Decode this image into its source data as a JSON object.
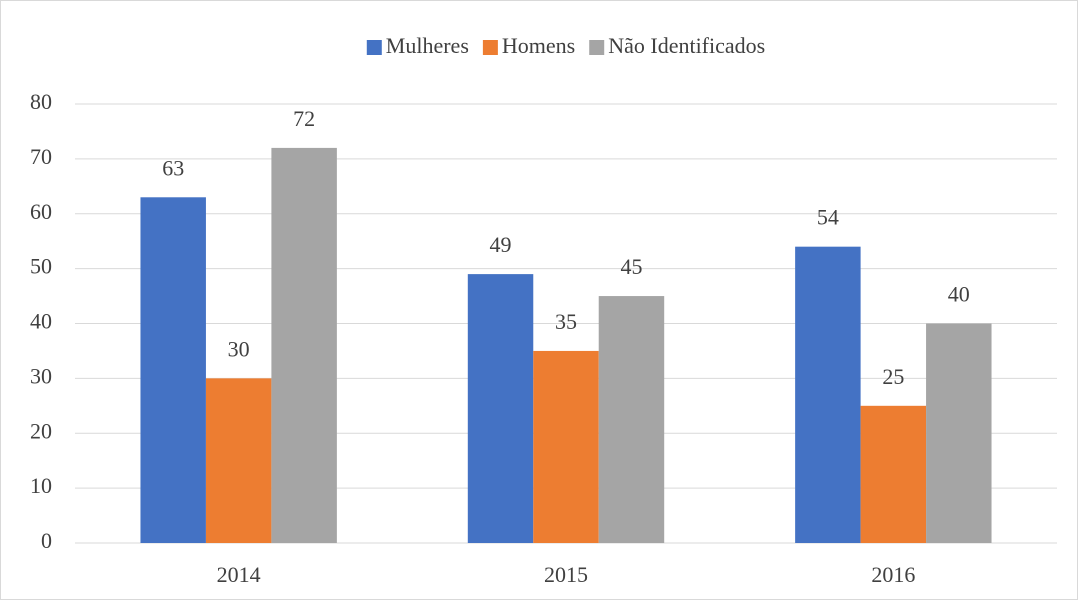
{
  "chart_data": {
    "type": "bar",
    "categories": [
      "2014",
      "2015",
      "2016"
    ],
    "series": [
      {
        "name": "Mulheres",
        "color": "#4472c4",
        "values": [
          63,
          49,
          54
        ]
      },
      {
        "name": "Homens",
        "color": "#ed7d31",
        "values": [
          30,
          35,
          25
        ]
      },
      {
        "name": "Não Identificados",
        "color": "#a5a5a5",
        "values": [
          72,
          45,
          40
        ]
      }
    ],
    "ylim": [
      0,
      80
    ],
    "yticks": [
      0,
      10,
      20,
      30,
      40,
      50,
      60,
      70,
      80
    ],
    "grid": true,
    "legend": "top"
  }
}
